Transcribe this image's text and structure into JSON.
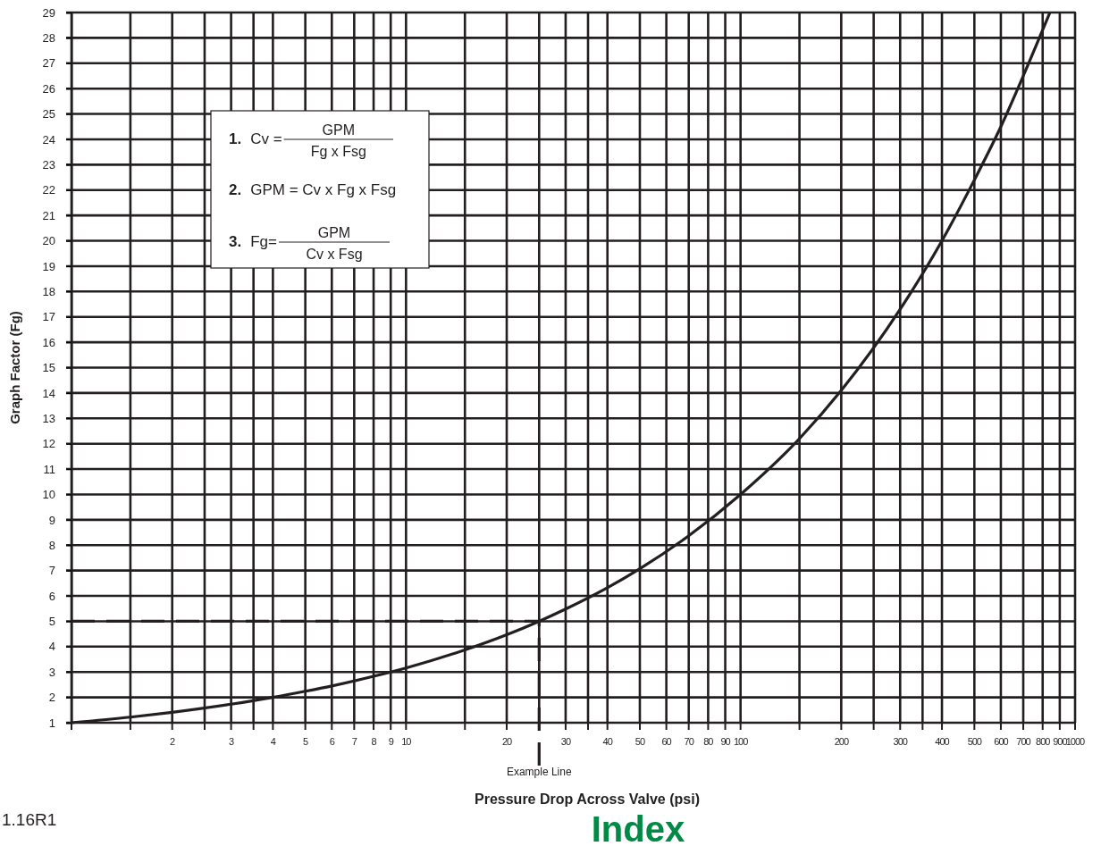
{
  "chart_data": {
    "type": "line",
    "xlabel": "Pressure Drop Across Valve (psi)",
    "ylabel": "Graph Factor (Fg)",
    "log": "x",
    "grid": true,
    "xlim": [
      1,
      1000
    ],
    "ylim": [
      1,
      29
    ],
    "xticks": [
      {
        "value": 1,
        "label": null
      },
      {
        "value": 1.5,
        "label": null
      },
      2,
      {
        "value": 2.5,
        "label": null
      },
      3,
      {
        "value": 3.5,
        "label": null
      },
      4,
      5,
      6,
      7,
      8,
      9,
      10,
      {
        "value": 15,
        "label": null
      },
      20,
      {
        "value": 25,
        "label": null
      },
      30,
      {
        "value": 35,
        "label": null
      },
      40,
      50,
      60,
      70,
      80,
      90,
      100,
      {
        "value": 150,
        "label": null
      },
      200,
      {
        "value": 250,
        "label": null
      },
      300,
      {
        "value": 350,
        "label": null
      },
      400,
      500,
      600,
      700,
      800,
      900,
      1000
    ],
    "yticks": [
      1,
      2,
      3,
      4,
      5,
      6,
      7,
      8,
      9,
      10,
      11,
      12,
      13,
      14,
      15,
      16,
      17,
      18,
      19,
      20,
      21,
      22,
      23,
      24,
      25,
      26,
      27,
      28,
      29
    ],
    "series": [
      {
        "color": "#231f20",
        "x": [
          1,
          1.5,
          2,
          3,
          4,
          5,
          6,
          8,
          10,
          15,
          20,
          25,
          30,
          40,
          50,
          70,
          100,
          150,
          200,
          300,
          400,
          500,
          600,
          700,
          841
        ],
        "values": [
          1,
          1.22,
          1.41,
          1.73,
          2,
          2.24,
          2.45,
          2.83,
          3.16,
          3.87,
          4.47,
          5,
          5.48,
          6.32,
          7.07,
          8.37,
          10,
          12.2,
          14.1,
          17.3,
          20,
          22.4,
          24.5,
          26.5,
          29
        ]
      }
    ],
    "ref_lines": [
      {
        "axis": "y",
        "value": 5,
        "line_style": "dashed"
      },
      {
        "axis": "x",
        "value": 25,
        "label": "Example Line",
        "line_style": "dashed"
      }
    ],
    "annotations": [
      "1. Cv =",
      "GPM",
      "Fg x Fsg",
      "2. GPM = Cv x Fg x Fsg",
      "3. Fg=",
      "GPM",
      "Cv x Fsg",
      "1.16R1",
      "Index"
    ]
  }
}
